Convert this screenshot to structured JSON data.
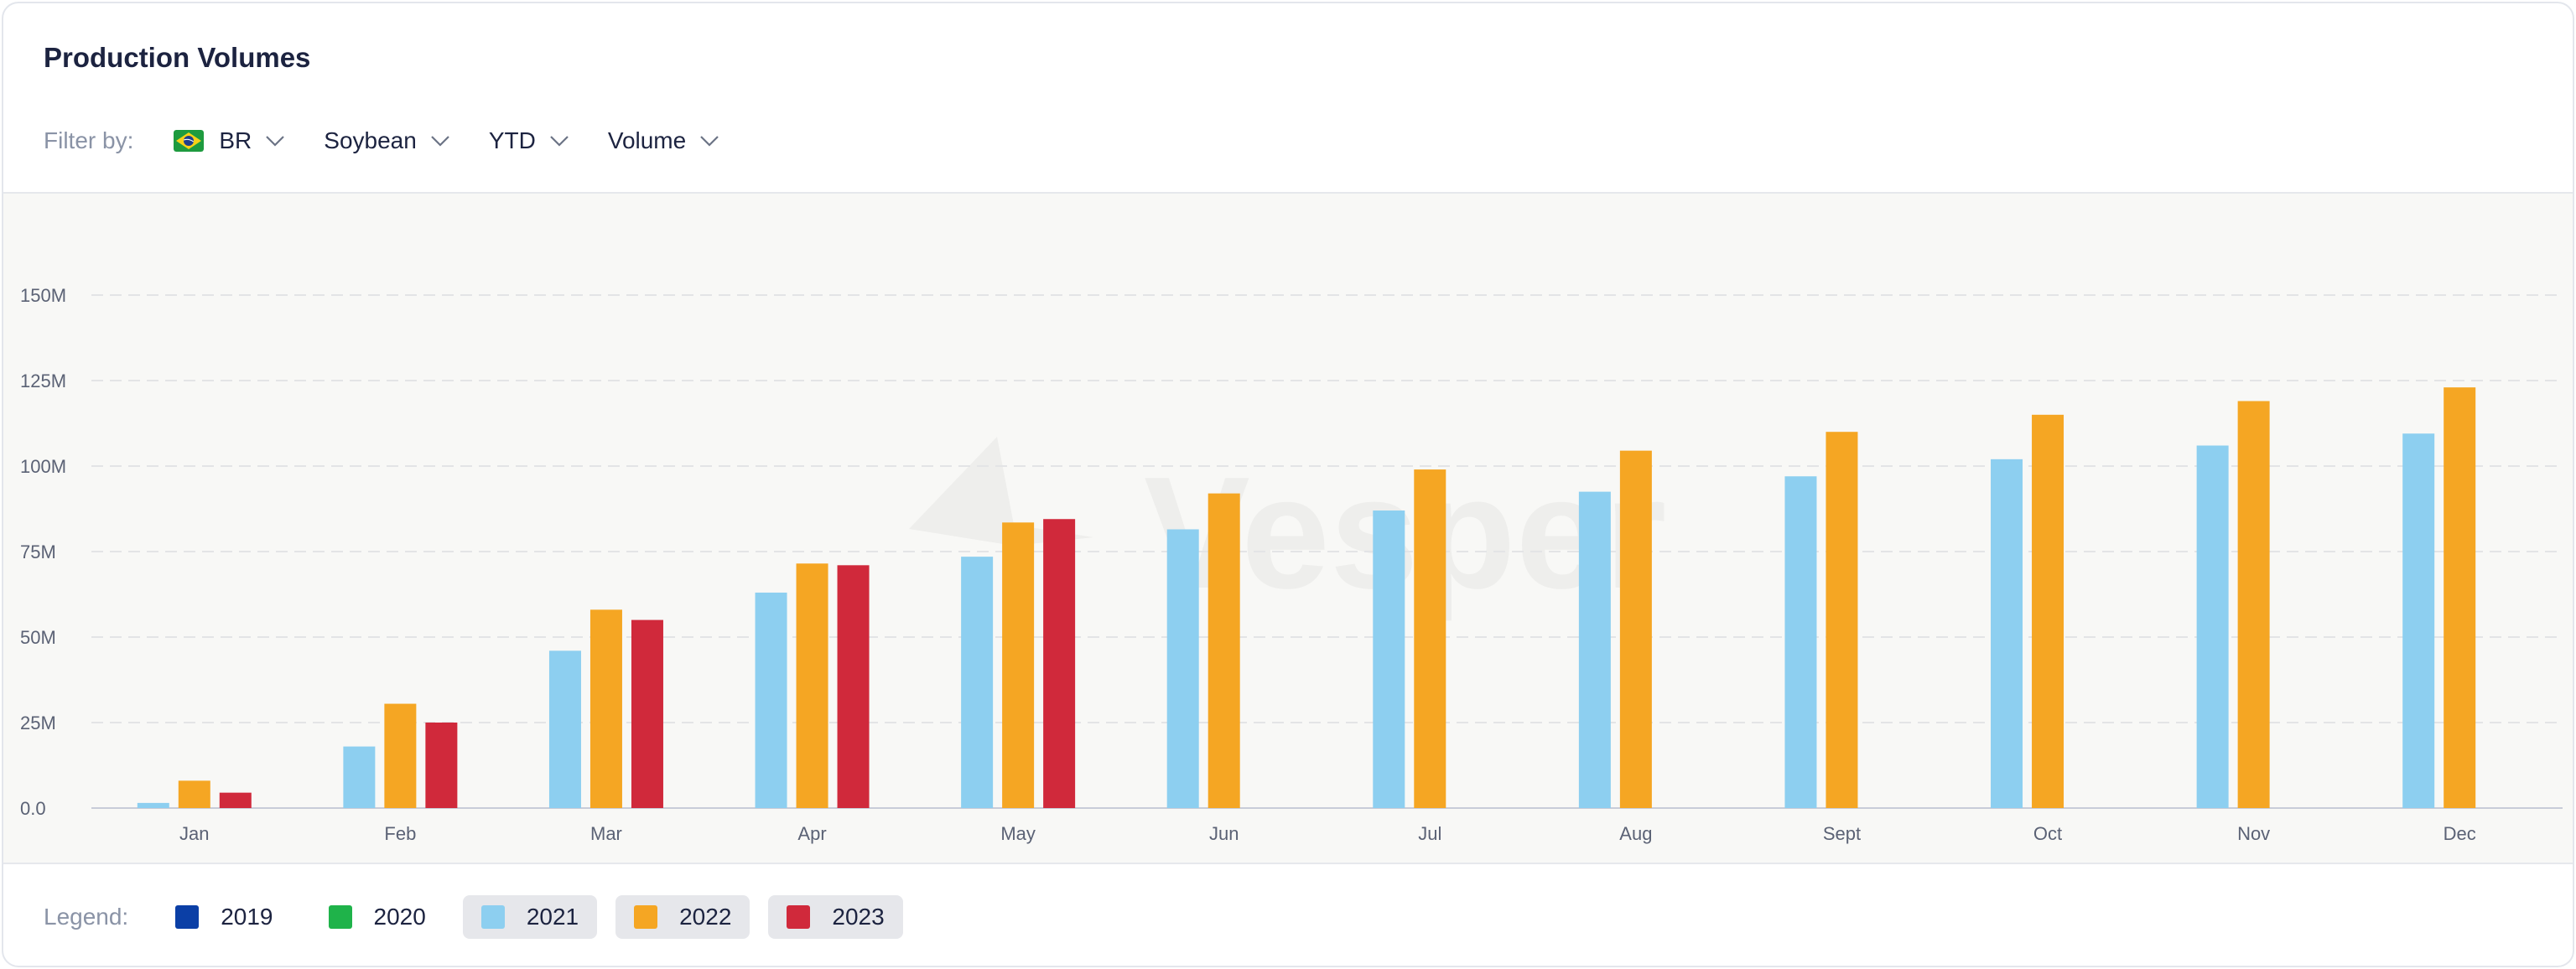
{
  "title": "Production Volumes",
  "filters": {
    "label": "Filter by:",
    "country": "BR",
    "commodity": "Soybean",
    "period": "YTD",
    "metric": "Volume"
  },
  "watermark": "Vesper",
  "legend": {
    "label": "Legend:",
    "items": [
      {
        "name": "2019",
        "color": "#0b3fa6",
        "active": false
      },
      {
        "name": "2020",
        "color": "#1fb34a",
        "active": false
      },
      {
        "name": "2021",
        "color": "#8dcff0",
        "active": true
      },
      {
        "name": "2022",
        "color": "#f5a623",
        "active": true
      },
      {
        "name": "2023",
        "color": "#d0293b",
        "active": true
      }
    ]
  },
  "chart_data": {
    "type": "bar",
    "categories": [
      "Jan",
      "Feb",
      "Mar",
      "Apr",
      "May",
      "Jun",
      "Jul",
      "Aug",
      "Sept",
      "Oct",
      "Nov",
      "Dec"
    ],
    "ylim": [
      0,
      150
    ],
    "yticks": [
      0,
      25,
      50,
      75,
      100,
      125,
      150
    ],
    "ytick_labels": [
      "0.0",
      "25M",
      "50M",
      "75M",
      "100M",
      "125M",
      "150M"
    ],
    "grid": true,
    "series": [
      {
        "name": "2021",
        "color": "#8dcff0",
        "values": [
          1.5,
          18,
          46,
          63,
          73.5,
          81.5,
          87,
          92.5,
          97,
          102,
          106,
          109.5
        ]
      },
      {
        "name": "2022",
        "color": "#f5a623",
        "values": [
          8,
          30.5,
          58,
          71.5,
          83.5,
          92,
          99,
          104.5,
          110,
          115,
          119,
          123
        ]
      },
      {
        "name": "2023",
        "color": "#d0293b",
        "values": [
          4.5,
          25,
          55,
          71,
          84.5,
          null,
          null,
          null,
          null,
          null,
          null,
          null
        ]
      }
    ]
  }
}
